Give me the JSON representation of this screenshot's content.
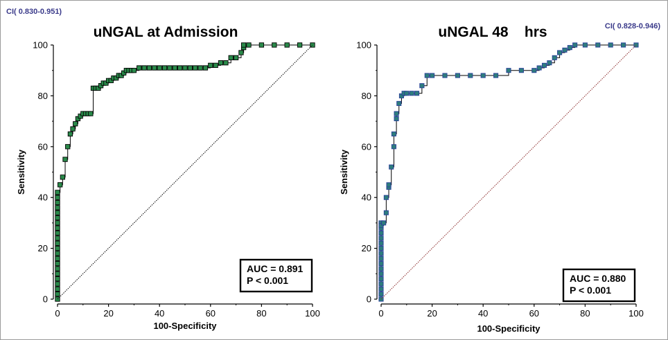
{
  "chart_data": [
    {
      "type": "line",
      "title": "uNGAL at Admission",
      "ci": "CI( 0.830-0.951)",
      "xlabel": "100-Specificity",
      "ylabel": "Sensitivity",
      "xlim": [
        0,
        100
      ],
      "ylim": [
        0,
        100
      ],
      "xticks": [
        "0",
        "20",
        "40",
        "60",
        "80",
        "100"
      ],
      "yticks": [
        "0",
        "20",
        "40",
        "60",
        "80",
        "100"
      ],
      "annotation": [
        "AUC = 0.891",
        "P < 0.001"
      ],
      "series": [
        {
          "role": "roc-curve",
          "marker_color": "#2a8a4a",
          "x": [
            0,
            0,
            0,
            0,
            0,
            0,
            0,
            0,
            0,
            0,
            0,
            0,
            0,
            0,
            0,
            0,
            0,
            0,
            0,
            0,
            0,
            0,
            1,
            2,
            3,
            4,
            5,
            6,
            7,
            8,
            9,
            10,
            11,
            12,
            13,
            14,
            15,
            16,
            17,
            18,
            19,
            20,
            21,
            22,
            23,
            24,
            25,
            26,
            27,
            28,
            29,
            30,
            32,
            34,
            36,
            38,
            40,
            42,
            44,
            46,
            48,
            50,
            52,
            54,
            56,
            58,
            60,
            62,
            64,
            66,
            68,
            70,
            72,
            73,
            73,
            75,
            80,
            85,
            90,
            95,
            100
          ],
          "y": [
            0,
            2,
            4,
            6,
            8,
            10,
            12,
            14,
            16,
            18,
            20,
            22,
            24,
            26,
            28,
            30,
            32,
            34,
            36,
            38,
            40,
            42,
            45,
            48,
            55,
            60,
            65,
            67,
            69,
            71,
            72,
            73,
            73,
            73,
            73,
            83,
            83,
            83,
            84,
            85,
            85,
            86,
            86,
            87,
            87,
            88,
            88,
            89,
            90,
            90,
            90,
            90,
            91,
            91,
            91,
            91,
            91,
            91,
            91,
            91,
            91,
            91,
            91,
            91,
            91,
            91,
            92,
            92,
            93,
            93,
            95,
            95,
            97,
            99,
            100,
            100,
            100,
            100,
            100,
            100,
            100
          ]
        },
        {
          "role": "reference-diagonal",
          "color": "#000000",
          "x": [
            0,
            100
          ],
          "y": [
            0,
            100
          ]
        }
      ]
    },
    {
      "type": "line",
      "title": "uNGAL 48    hrs",
      "ci": "CI( 0.828-0.946)",
      "xlabel": "100-Specificity",
      "ylabel": "Sensitivity",
      "xlim": [
        0,
        100
      ],
      "ylim": [
        0,
        100
      ],
      "xticks": [
        "0",
        "20",
        "40",
        "60",
        "80",
        "100"
      ],
      "yticks": [
        "0",
        "20",
        "40",
        "60",
        "80",
        "100"
      ],
      "annotation": [
        "AUC = 0.880",
        "P < 0.001"
      ],
      "series": [
        {
          "role": "roc-curve",
          "marker_color": "#2e7d7d",
          "x": [
            0,
            0,
            0,
            0,
            0,
            0,
            0,
            0,
            0,
            0,
            0,
            0,
            0,
            0,
            0,
            0,
            0,
            1,
            2,
            2,
            3,
            3,
            4,
            5,
            5,
            6,
            6,
            7,
            8,
            9,
            10,
            12,
            14,
            16,
            18,
            20,
            25,
            30,
            35,
            40,
            45,
            50,
            55,
            60,
            62,
            64,
            66,
            68,
            70,
            72,
            74,
            76,
            80,
            85,
            90,
            95,
            100
          ],
          "y": [
            0,
            2,
            4,
            6,
            8,
            10,
            12,
            14,
            16,
            18,
            20,
            22,
            24,
            26,
            28,
            30,
            29,
            30,
            34,
            40,
            44,
            45,
            52,
            60,
            65,
            71,
            73,
            77,
            80,
            81,
            81,
            81,
            81,
            84,
            88,
            88,
            88,
            88,
            88,
            88,
            88,
            90,
            90,
            90,
            91,
            92,
            93,
            95,
            97,
            98,
            99,
            100,
            100,
            100,
            100,
            100,
            100
          ]
        },
        {
          "role": "reference-diagonal",
          "color": "#8a2a2a",
          "x": [
            0,
            100
          ],
          "y": [
            0,
            100
          ]
        }
      ]
    }
  ]
}
